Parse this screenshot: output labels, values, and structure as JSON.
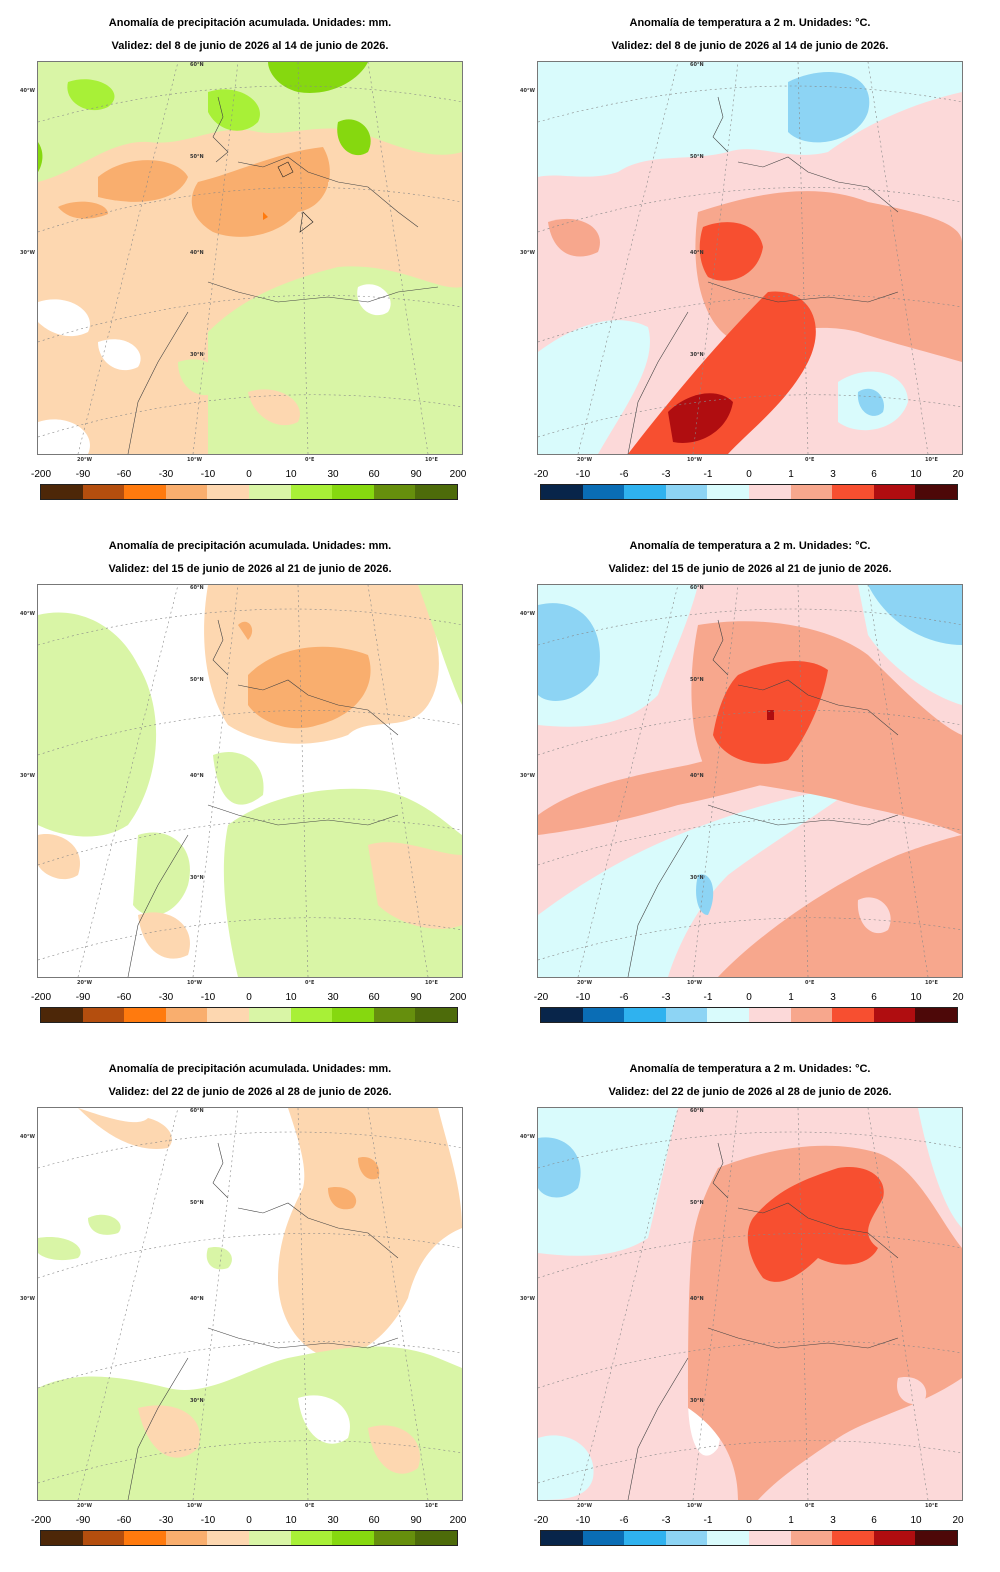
{
  "precip_legend": {
    "ticks": [
      "-200",
      "-90",
      "-60",
      "-30",
      "-10",
      "0",
      "10",
      "30",
      "60",
      "90",
      "200"
    ],
    "colors": [
      "#4d2708",
      "#b44e0e",
      "#ff7a0e",
      "#f9ae6e",
      "#fdd7b0",
      "#d9f5a6",
      "#a8f037",
      "#86d80f",
      "#668f0d",
      "#4d6b0a"
    ]
  },
  "temp_legend": {
    "ticks": [
      "-20",
      "-10",
      "-6",
      "-3",
      "-1",
      "0",
      "1",
      "3",
      "6",
      "10",
      "20"
    ],
    "colors": [
      "#08254a",
      "#0a6db5",
      "#2fb2ef",
      "#8dd4f4",
      "#d9fbfc",
      "#fcd9d9",
      "#f7a78d",
      "#f74f30",
      "#b00d10",
      "#4d0808"
    ]
  },
  "map_labels": {
    "lon_20w": "20°W",
    "lon_10w": "10°W",
    "lon_0e": "0°E",
    "lon_10e": "10°E",
    "lat_40w": "40°W",
    "lat_30w": "30°W",
    "par_60n": "60°N",
    "par_50n": "50°N",
    "par_40n": "40°N",
    "par_30n": "30°N"
  },
  "panels": [
    {
      "title": "Anomalía de precipitación acumulada. Unidades: mm.",
      "validity": "Validez: del 8 de junio de 2026 al 14 de junio de 2026."
    },
    {
      "title": "Anomalía de temperatura a 2 m. Unidades: °C.",
      "validity": "Validez: del 8 de junio de 2026 al 14 de junio de 2026."
    },
    {
      "title": "Anomalía de precipitación acumulada. Unidades: mm.",
      "validity": "Validez: del 15 de junio de 2026 al 21 de junio de 2026."
    },
    {
      "title": "Anomalía de temperatura a 2 m. Unidades: °C.",
      "validity": "Validez: del 15 de junio de 2026 al 21 de junio de 2026."
    },
    {
      "title": "Anomalía de precipitación acumulada. Unidades: mm.",
      "validity": "Validez: del 22 de junio de 2026 al 28 de junio de 2026."
    },
    {
      "title": "Anomalía de temperatura a 2 m. Unidades: °C.",
      "validity": "Validez: del 22 de junio de 2026 al 28 de junio de 2026."
    }
  ]
}
